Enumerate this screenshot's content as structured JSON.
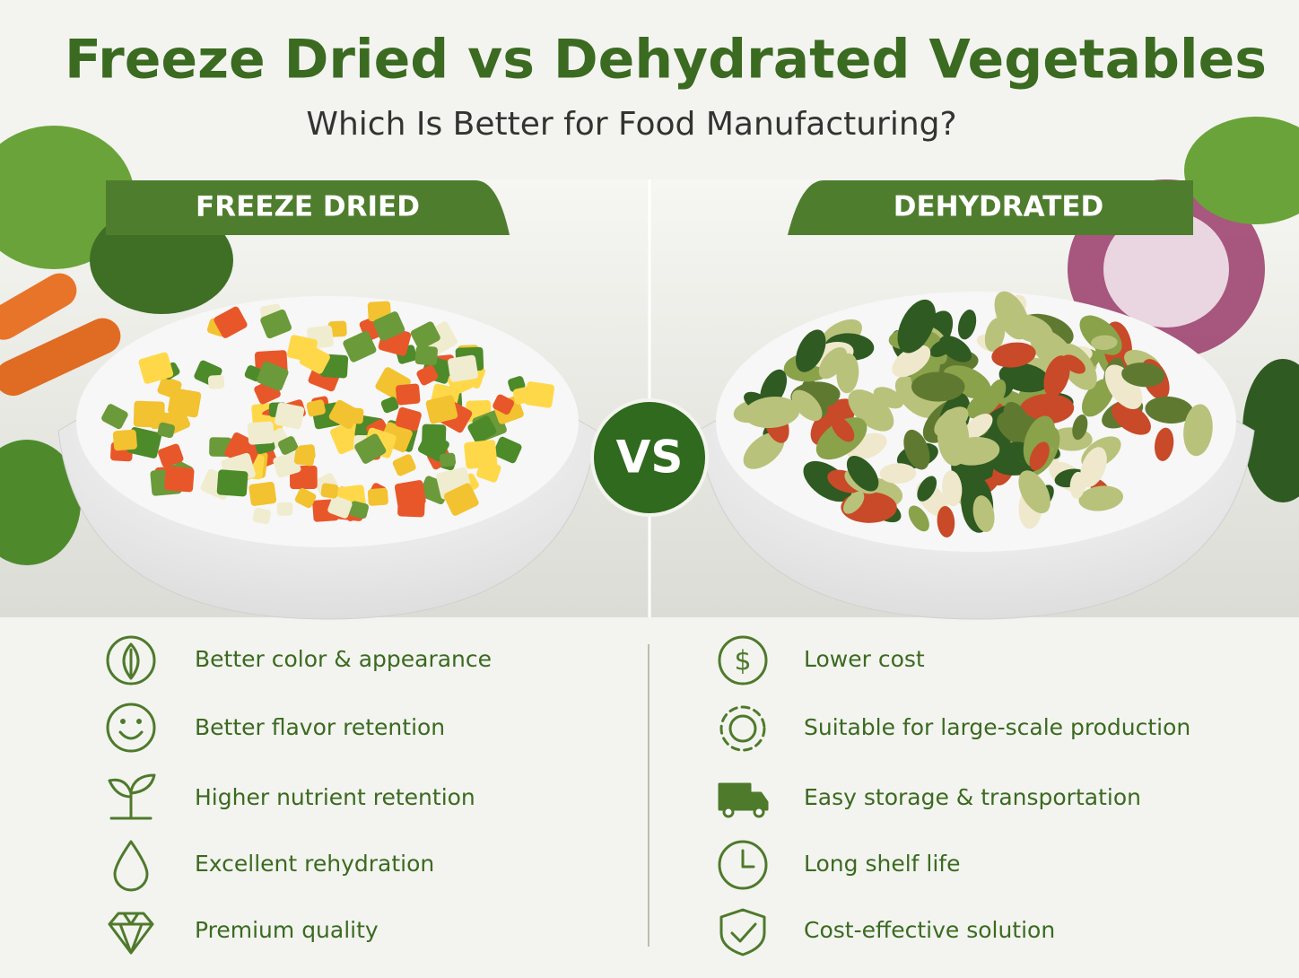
{
  "header": {
    "title": "Freeze Dried vs Dehydrated Vegetables",
    "subtitle": "Which Is Better for Food Manufacturing?"
  },
  "left": {
    "label": "FREEZE DRIED",
    "benefits": [
      "Better color & appearance",
      "Better flavor retention",
      "Higher nutrient retention",
      "Excellent rehydration",
      "Premium quality"
    ]
  },
  "vs": "VS",
  "right": {
    "label": "DEHYDRATED",
    "benefits": [
      "Lower cost",
      "Suitable for large-scale production",
      "Easy storage & transportation",
      "Long shelf life",
      "Cost-effective solution"
    ]
  }
}
